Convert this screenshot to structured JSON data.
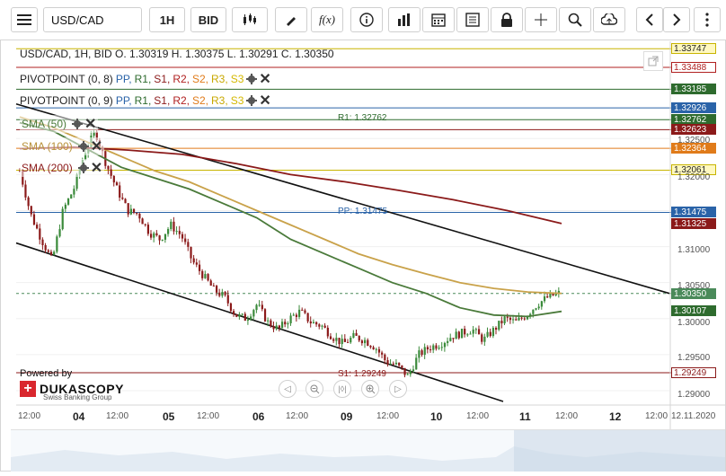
{
  "toolbar": {
    "symbol": "USD/CAD",
    "timeframe": "1H",
    "side": "BID",
    "icons": [
      "menu-icon",
      "candles-icon",
      "draw-icon",
      "function-icon",
      "info-icon",
      "bar-icon",
      "calendar-icon",
      "news-icon",
      "lock-icon",
      "crosshair-icon",
      "zoom-icon",
      "upload-icon",
      "prev-icon",
      "next-icon"
    ]
  },
  "header": {
    "ohlc": "USD/CAD, 1H, BID   O. 1.30319 H. 1.30375 L. 1.30291 C. 1.30350"
  },
  "indicators": [
    {
      "name": "PIVOTPOINT (0, 8)",
      "parts": [
        "PP,",
        "R1,",
        "S1,",
        "R2,",
        "S2,",
        "R3,",
        "S3"
      ]
    },
    {
      "name": "PIVOTPOINT (0, 9)",
      "parts": [
        "PP,",
        "R1,",
        "S1,",
        "R2,",
        "S2,",
        "R3,",
        "S3"
      ]
    }
  ],
  "sma_labels": [
    "SMA (50)",
    "SMA (100)",
    "SMA (200)"
  ],
  "level_labels": {
    "r1": "R1: 1.32762",
    "pp": "PP: 1.31475",
    "s1": "S1: 1.29249"
  },
  "price_tags": [
    {
      "text": "1.33747",
      "bg": "#fff8c0",
      "border": "#c8b400",
      "color": "#222"
    },
    {
      "text": "1.33488",
      "bg": "#ffffff",
      "border": "#b02020",
      "color": "#b02020"
    },
    {
      "text": "1.33185",
      "bg": "#2e6b2e",
      "border": "#2e6b2e",
      "color": "#ffffff"
    },
    {
      "text": "1.32926",
      "bg": "#2a63a8",
      "border": "#2a63a8",
      "color": "#ffffff"
    },
    {
      "text": "1.32762",
      "bg": "#2e6b2e",
      "border": "#2e6b2e",
      "color": "#ffffff"
    },
    {
      "text": "1.32623",
      "bg": "#8b1a1a",
      "border": "#8b1a1a",
      "color": "#ffffff"
    },
    {
      "text": "1.32364",
      "bg": "#e07b1a",
      "border": "#e07b1a",
      "color": "#ffffff"
    },
    {
      "text": "1.32061",
      "bg": "#fff8c0",
      "border": "#c8b400",
      "color": "#222"
    },
    {
      "text": "1.31475",
      "bg": "#2a63a8",
      "border": "#2a63a8",
      "color": "#ffffff"
    },
    {
      "text": "1.31325",
      "bg": "#8b1a1a",
      "border": "#8b1a1a",
      "color": "#ffffff"
    },
    {
      "text": "1.30350",
      "bg": "#4a8a5a",
      "border": "#4a8a5a",
      "color": "#ffffff"
    },
    {
      "text": "1.30107",
      "bg": "#2e6b2e",
      "border": "#2e6b2e",
      "color": "#ffffff"
    },
    {
      "text": "1.29249",
      "bg": "#ffffff",
      "border": "#8b1a1a",
      "color": "#8b1a1a"
    }
  ],
  "branding": {
    "powered_by": "Powered by",
    "name": "DUKASCOPY",
    "sub": "Swiss Banking Group"
  },
  "chart_data": {
    "type": "candlestick",
    "symbol": "USD/CAD",
    "timeframe": "1H",
    "y_axis_ticks": [
      "1.32500",
      "1.32000",
      "1.31000",
      "1.30500",
      "1.30000",
      "1.29500",
      "1.29000"
    ],
    "x_axis_ticks": [
      "12:00",
      "04",
      "12:00",
      "05",
      "12:00",
      "06",
      "12:00",
      "09",
      "12:00",
      "10",
      "12:00",
      "11",
      "12:00",
      "12",
      "12:00",
      "12.11.2020"
    ],
    "ylim": [
      1.288,
      1.3385
    ],
    "close_path": [
      1.3205,
      1.3145,
      1.311,
      1.308,
      1.315,
      1.318,
      1.323,
      1.326,
      1.3215,
      1.318,
      1.315,
      1.3145,
      1.312,
      1.311,
      1.313,
      1.3115,
      1.308,
      1.306,
      1.304,
      1.303,
      1.3005,
      1.3,
      1.302,
      1.2995,
      1.2985,
      1.3,
      1.301,
      1.2995,
      1.299,
      1.2975,
      1.2965,
      1.2975,
      1.297,
      1.296,
      1.294,
      1.2935,
      1.292,
      1.295,
      1.296,
      1.2965,
      1.2975,
      1.298,
      1.2985,
      1.297,
      1.2985,
      1.3,
      1.2995,
      1.3005,
      1.302,
      1.303,
      1.3035
    ],
    "current_price": 1.3035,
    "series": [
      {
        "name": "SMA (50)",
        "color": "#4a7a3a",
        "values": [
          1.3272,
          1.326,
          1.3235,
          1.321,
          1.3195,
          1.318,
          1.316,
          1.314,
          1.311,
          1.309,
          1.307,
          1.305,
          1.3035,
          1.3015,
          1.3005,
          1.3003,
          1.301
        ]
      },
      {
        "name": "SMA (100)",
        "color": "#c9a24a",
        "values": [
          1.328,
          1.3265,
          1.3245,
          1.3225,
          1.3205,
          1.319,
          1.317,
          1.315,
          1.313,
          1.311,
          1.309,
          1.3075,
          1.3062,
          1.305,
          1.3042,
          1.3037,
          1.3035
        ]
      },
      {
        "name": "SMA (200)",
        "color": "#8b1a1a",
        "values": [
          1.3236,
          1.3238,
          1.3234,
          1.3228,
          1.3215,
          1.32,
          1.319,
          1.3178,
          1.3165,
          1.315,
          1.3132
        ]
      }
    ],
    "levels": [
      {
        "value": 1.33747,
        "color": "#c8b400"
      },
      {
        "value": 1.33488,
        "color": "#b02020"
      },
      {
        "value": 1.33185,
        "color": "#2e6b2e"
      },
      {
        "value": 1.32926,
        "color": "#2a63a8"
      },
      {
        "value": 1.32762,
        "color": "#2e6b2e"
      },
      {
        "value": 1.32623,
        "color": "#8b1a1a"
      },
      {
        "value": 1.32364,
        "color": "#e07b1a"
      },
      {
        "value": 1.32061,
        "color": "#c8b400"
      },
      {
        "value": 1.31475,
        "color": "#2a63a8"
      },
      {
        "value": 1.29249,
        "color": "#8b1a1a"
      }
    ]
  }
}
